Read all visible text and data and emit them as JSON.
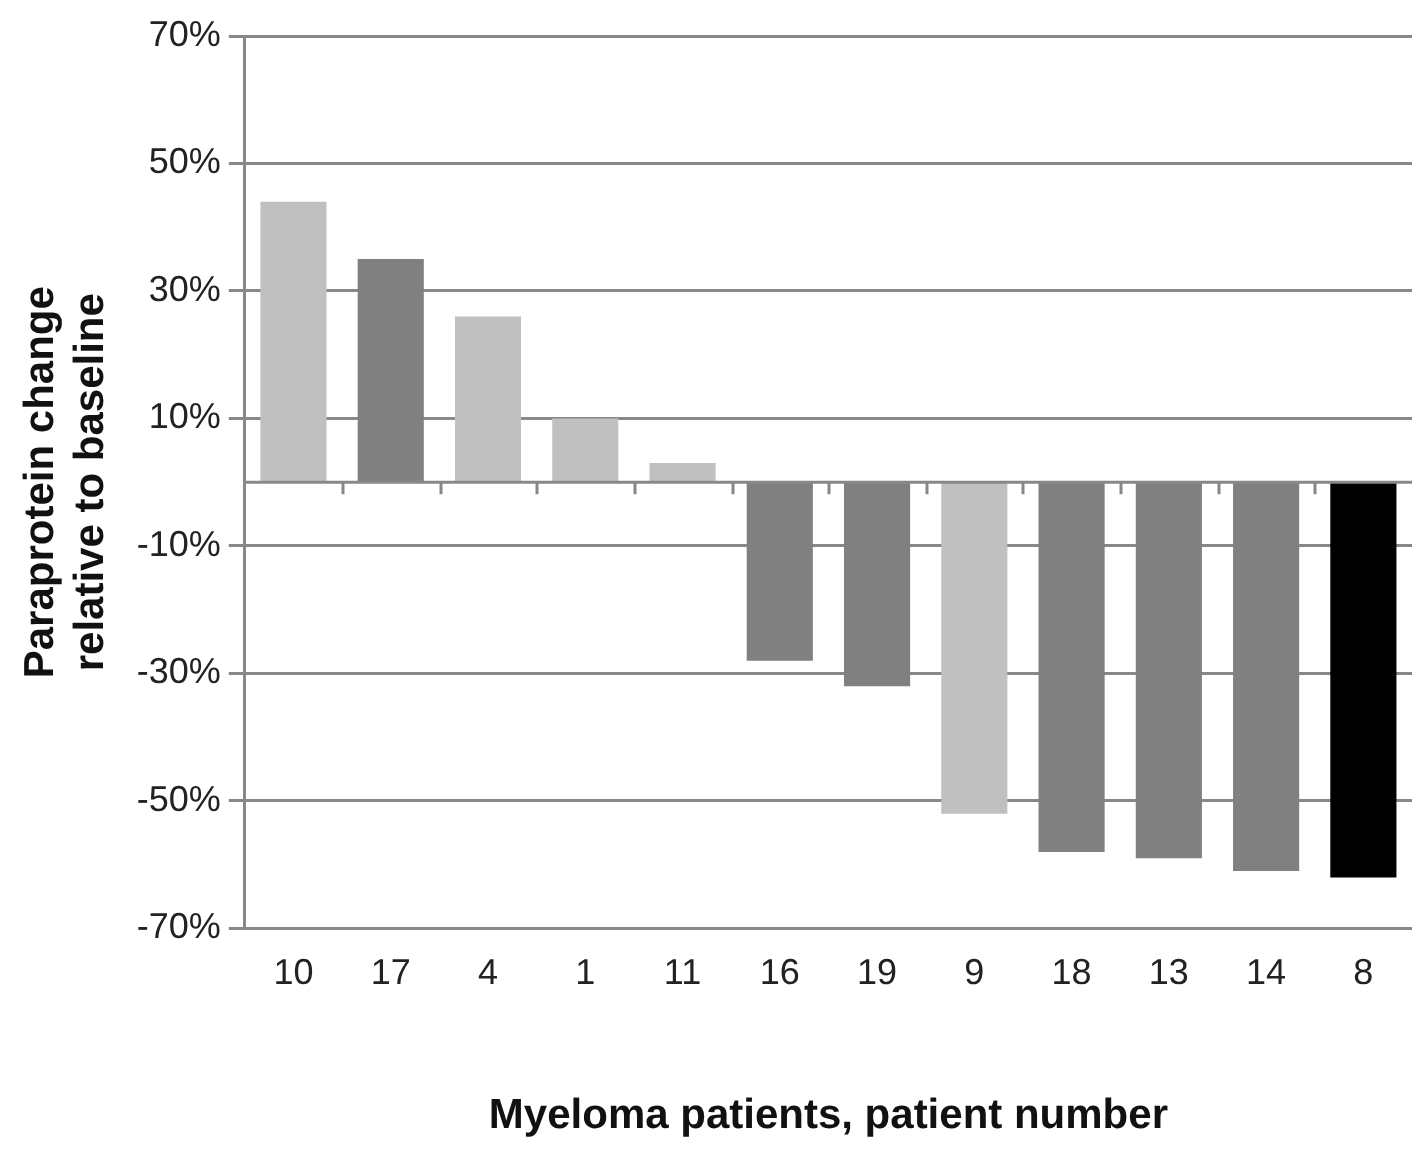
{
  "chart_data": {
    "type": "bar",
    "xlabel": "Myeloma patients, patient number",
    "ylabel": "Paraprotein change relative to baseline",
    "categories": [
      "10",
      "17",
      "4",
      "1",
      "11",
      "16",
      "19",
      "9",
      "18",
      "13",
      "14",
      "8"
    ],
    "values": [
      44,
      35,
      26,
      10,
      3,
      -28,
      -32,
      -52,
      -58,
      -59,
      -61,
      -62
    ],
    "colors": [
      "#c0c0c0",
      "#808080",
      "#c0c0c0",
      "#c0c0c0",
      "#c0c0c0",
      "#808080",
      "#808080",
      "#c0c0c0",
      "#808080",
      "#808080",
      "#808080",
      "#000000"
    ],
    "ylim": [
      -70,
      70
    ],
    "yticks": [
      {
        "value": -70,
        "label": "-70%"
      },
      {
        "value": -50,
        "label": "-50%"
      },
      {
        "value": -30,
        "label": "-30%"
      },
      {
        "value": -10,
        "label": "-10%"
      },
      {
        "value": 10,
        "label": "10%"
      },
      {
        "value": 30,
        "label": "30%"
      },
      {
        "value": 50,
        "label": "50%"
      },
      {
        "value": 70,
        "label": "70%"
      }
    ],
    "grid": "y"
  }
}
